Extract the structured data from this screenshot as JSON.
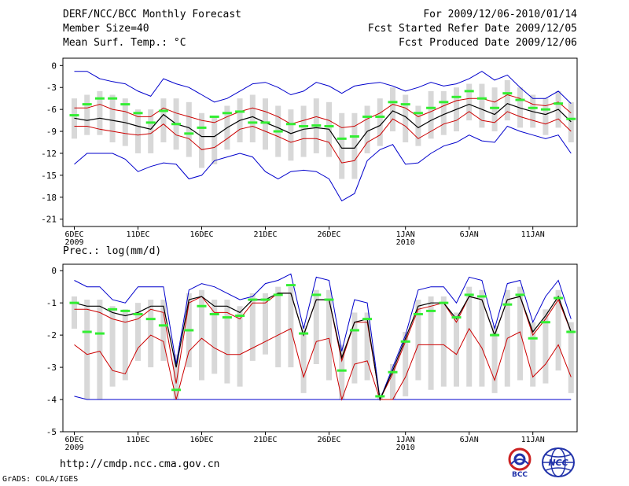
{
  "header": {
    "title": "DERF/NCC/BCC Monthly Forecast",
    "member": "Member Size=40",
    "variable": "Mean Surf. Temp.: °C",
    "period": "For 2009/12/06-2010/01/14",
    "started": "Fcst Started Refer Date 2009/12/05",
    "produced": "Fcst Produced Date 2009/12/06"
  },
  "footer": {
    "url": "http://cmdp.ncc.cma.gov.cn",
    "credit": "GrADS: COLA/IGES",
    "logo_bcc": "BCC",
    "logo_ncc": "NCC"
  },
  "colors": {
    "blue": "#0000cc",
    "red": "#cc0000",
    "black": "#000000",
    "green": "#33ee33",
    "box": "#d8d8d8"
  },
  "chart_data": [
    {
      "type": "ensemble-box",
      "name": "Mean Surf. Temp.",
      "ylabel": "°C",
      "ylim": [
        -22,
        1
      ],
      "yticks": [
        0,
        -3,
        -6,
        -9,
        -12,
        -15,
        -18,
        -21
      ],
      "xlim": [
        0,
        40
      ],
      "xticks": [
        {
          "i": 0,
          "label": "6DEC",
          "sub": "2009"
        },
        {
          "i": 5,
          "label": "11DEC",
          "sub": ""
        },
        {
          "i": 10,
          "label": "16DEC",
          "sub": ""
        },
        {
          "i": 15,
          "label": "21DEC",
          "sub": ""
        },
        {
          "i": 20,
          "label": "26DEC",
          "sub": ""
        },
        {
          "i": 26,
          "label": "1JAN",
          "sub": "2010"
        },
        {
          "i": 31,
          "label": "6JAN",
          "sub": ""
        },
        {
          "i": 36,
          "label": "11JAN",
          "sub": ""
        }
      ],
      "blue_max": [
        -0.8,
        -0.8,
        -1.8,
        -2.2,
        -2.5,
        -3.5,
        -4.2,
        -1.8,
        -2.5,
        -3.0,
        -4.0,
        -5.0,
        -4.5,
        -3.5,
        -2.5,
        -2.3,
        -3.0,
        -4.0,
        -3.5,
        -2.3,
        -2.8,
        -3.8,
        -2.8,
        -2.5,
        -2.3,
        -2.8,
        -3.5,
        -3.0,
        -2.3,
        -2.8,
        -2.5,
        -1.8,
        -0.8,
        -2.0,
        -1.3,
        -3.0,
        -4.5,
        -4.5,
        -3.5,
        -5.2
      ],
      "red_upper": [
        -5.8,
        -5.8,
        -5.3,
        -6.0,
        -6.3,
        -7.0,
        -7.0,
        -5.8,
        -6.5,
        -7.0,
        -7.5,
        -7.8,
        -7.0,
        -6.3,
        -5.8,
        -6.3,
        -7.0,
        -8.0,
        -7.5,
        -7.0,
        -7.5,
        -8.5,
        -8.3,
        -7.3,
        -6.5,
        -5.3,
        -5.8,
        -7.0,
        -6.3,
        -5.5,
        -4.8,
        -4.5,
        -4.5,
        -5.0,
        -4.0,
        -4.5,
        -5.3,
        -5.5,
        -5.0,
        -6.5
      ],
      "black_mean": [
        -7.2,
        -7.5,
        -7.2,
        -7.5,
        -7.8,
        -8.3,
        -8.7,
        -6.7,
        -8.0,
        -8.5,
        -9.7,
        -9.7,
        -8.5,
        -7.5,
        -7.0,
        -7.8,
        -8.5,
        -9.3,
        -8.7,
        -8.5,
        -8.7,
        -11.3,
        -11.3,
        -9.0,
        -8.2,
        -6.2,
        -7.0,
        -8.5,
        -7.5,
        -6.7,
        -6.0,
        -5.3,
        -6.0,
        -6.7,
        -5.2,
        -5.8,
        -6.3,
        -6.7,
        -6.0,
        -7.7
      ],
      "red_lower": [
        -8.3,
        -8.3,
        -8.7,
        -9.0,
        -9.3,
        -9.5,
        -9.3,
        -8.0,
        -9.5,
        -10.0,
        -11.5,
        -11.2,
        -10.0,
        -8.7,
        -8.3,
        -9.0,
        -9.7,
        -10.5,
        -10.0,
        -10.0,
        -10.5,
        -13.3,
        -13.0,
        -10.5,
        -9.5,
        -7.3,
        -8.3,
        -10.0,
        -9.0,
        -8.0,
        -7.5,
        -6.3,
        -7.5,
        -7.8,
        -6.3,
        -7.0,
        -7.5,
        -8.0,
        -7.3,
        -9.0
      ],
      "blue_min": [
        -13.5,
        -12.0,
        -12.0,
        -12.0,
        -12.8,
        -14.5,
        -13.8,
        -13.3,
        -13.5,
        -15.5,
        -15.0,
        -13.0,
        -12.5,
        -12.0,
        -12.5,
        -14.5,
        -15.5,
        -14.5,
        -14.3,
        -14.5,
        -15.5,
        -18.5,
        -17.5,
        -13.0,
        -11.5,
        -10.8,
        -13.5,
        -13.3,
        -12.0,
        -11.0,
        -10.5,
        -9.5,
        -10.3,
        -10.5,
        -8.3,
        -9.0,
        -9.5,
        -10.0,
        -9.5,
        -12.0
      ],
      "box_top": [
        -4.5,
        -4.0,
        -3.5,
        -4.0,
        -4.5,
        -6.0,
        -6.0,
        -4.5,
        -4.5,
        -5.0,
        -6.5,
        -7.0,
        -5.5,
        -4.5,
        -4.0,
        -4.5,
        -5.5,
        -6.0,
        -5.5,
        -4.5,
        -5.0,
        -6.5,
        -6.5,
        -5.5,
        -4.5,
        -3.0,
        -4.0,
        -5.5,
        -3.5,
        -3.5,
        -3.0,
        -2.5,
        -2.5,
        -3.0,
        -2.0,
        -3.0,
        -4.0,
        -4.5,
        -3.5,
        -5.0
      ],
      "box_bottom": [
        -10.0,
        -9.5,
        -9.5,
        -10.5,
        -11.0,
        -12.0,
        -12.0,
        -10.5,
        -11.5,
        -12.5,
        -14.0,
        -13.5,
        -11.5,
        -10.5,
        -10.5,
        -11.5,
        -12.5,
        -13.0,
        -12.5,
        -12.0,
        -12.5,
        -15.5,
        -15.5,
        -12.0,
        -11.0,
        -9.0,
        -10.5,
        -11.0,
        -10.0,
        -9.5,
        -9.0,
        -7.5,
        -8.5,
        -9.0,
        -7.5,
        -8.5,
        -8.5,
        -9.5,
        -8.5,
        -10.5
      ],
      "green": [
        -6.8,
        -5.3,
        -4.5,
        -4.5,
        -5.3,
        -6.5,
        -7.8,
        -6.2,
        -8.0,
        -9.3,
        -8.5,
        -7.0,
        -6.5,
        -6.3,
        -7.8,
        -7.8,
        -9.0,
        -8.0,
        -8.3,
        -8.2,
        -8.3,
        -10.0,
        -9.7,
        -7.0,
        -7.0,
        -5.0,
        -5.3,
        -6.5,
        -5.8,
        -5.0,
        -4.3,
        -3.5,
        -4.5,
        -5.8,
        -3.8,
        -4.7,
        -5.8,
        -6.0,
        -5.2,
        -7.3
      ]
    },
    {
      "type": "ensemble-box",
      "name": "Prec.: log(mm/d)",
      "ylabel": "log(mm/d)",
      "ylim": [
        -5,
        0.2
      ],
      "yticks": [
        0,
        -1,
        -2,
        -3,
        -4,
        -5
      ],
      "xlim": [
        0,
        40
      ],
      "xticks": [
        {
          "i": 0,
          "label": "6DEC",
          "sub": "2009"
        },
        {
          "i": 5,
          "label": "11DEC",
          "sub": ""
        },
        {
          "i": 10,
          "label": "16DEC",
          "sub": ""
        },
        {
          "i": 15,
          "label": "21DEC",
          "sub": ""
        },
        {
          "i": 20,
          "label": "26DEC",
          "sub": ""
        },
        {
          "i": 26,
          "label": "1JAN",
          "sub": "2010"
        },
        {
          "i": 31,
          "label": "6JAN",
          "sub": ""
        },
        {
          "i": 36,
          "label": "11JAN",
          "sub": ""
        }
      ],
      "blue_max": [
        -0.3,
        -0.5,
        -0.5,
        -0.9,
        -1.0,
        -0.5,
        -0.5,
        -0.5,
        -2.9,
        -0.6,
        -0.4,
        -0.5,
        -0.7,
        -0.9,
        -0.8,
        -0.4,
        -0.3,
        -0.1,
        -1.8,
        -0.2,
        -0.3,
        -2.5,
        -0.9,
        -1.0,
        -4.0,
        -3.0,
        -2.0,
        -0.6,
        -0.5,
        -0.5,
        -1.0,
        -0.2,
        -0.3,
        -1.8,
        -0.4,
        -0.3,
        -1.6,
        -0.8,
        -0.3,
        -1.5
      ],
      "red_upper": [
        -1.2,
        -1.2,
        -1.3,
        -1.5,
        -1.6,
        -1.5,
        -1.2,
        -1.3,
        -3.5,
        -1.0,
        -0.8,
        -1.3,
        -1.3,
        -1.5,
        -1.0,
        -1.0,
        -0.7,
        -0.7,
        -2.0,
        -0.9,
        -0.9,
        -2.8,
        -1.6,
        -1.6,
        -4.0,
        -3.2,
        -2.2,
        -1.2,
        -1.1,
        -1.0,
        -1.6,
        -0.8,
        -0.9,
        -2.0,
        -0.9,
        -0.8,
        -2.0,
        -1.5,
        -0.9,
        -1.9
      ],
      "black_mean": [
        -1.0,
        -1.1,
        -1.1,
        -1.3,
        -1.4,
        -1.3,
        -1.1,
        -1.1,
        -3.0,
        -0.9,
        -0.8,
        -1.1,
        -1.1,
        -1.3,
        -0.9,
        -0.9,
        -0.7,
        -0.7,
        -2.0,
        -0.9,
        -0.9,
        -2.7,
        -1.6,
        -1.5,
        -4.0,
        -3.1,
        -2.1,
        -1.1,
        -1.0,
        -1.0,
        -1.5,
        -0.8,
        -0.9,
        -2.0,
        -0.9,
        -0.8,
        -1.9,
        -1.4,
        -0.8,
        -1.9
      ],
      "red_lower": [
        -2.3,
        -2.6,
        -2.5,
        -3.1,
        -3.2,
        -2.4,
        -2.0,
        -2.2,
        -4.0,
        -2.5,
        -2.1,
        -2.4,
        -2.6,
        -2.6,
        -2.4,
        -2.2,
        -2.0,
        -1.8,
        -3.3,
        -2.2,
        -2.1,
        -4.0,
        -2.9,
        -2.8,
        -4.0,
        -4.0,
        -3.3,
        -2.3,
        -2.3,
        -2.3,
        -2.6,
        -1.8,
        -2.4,
        -3.4,
        -2.1,
        -1.9,
        -3.3,
        -2.9,
        -2.3,
        -3.3
      ],
      "blue_min": [
        -3.9,
        -4.0,
        -4.0,
        -4.0,
        -4.0,
        -4.0,
        -4.0,
        -4.0,
        -4.0,
        -4.0,
        -4.0,
        -4.0,
        -4.0,
        -4.0,
        -4.0,
        -4.0,
        -4.0,
        -4.0,
        -4.0,
        -4.0,
        -4.0,
        -4.0,
        -4.0,
        -4.0,
        -4.0,
        -4.0,
        -4.0,
        -4.0,
        -4.0,
        -4.0,
        -4.0,
        -4.0,
        -4.0,
        -4.0,
        -4.0,
        -4.0,
        -4.0,
        -4.0,
        -4.0,
        -4.0
      ],
      "box_top": [
        -0.8,
        -0.9,
        -0.9,
        -1.1,
        -1.2,
        -1.0,
        -0.9,
        -0.9,
        -2.6,
        -0.7,
        -0.6,
        -0.9,
        -0.9,
        -1.1,
        -0.7,
        -0.7,
        -0.5,
        -0.5,
        -1.7,
        -0.6,
        -0.6,
        -2.3,
        -1.3,
        -1.3,
        -3.8,
        -2.9,
        -1.9,
        -0.9,
        -0.8,
        -0.8,
        -1.3,
        -0.5,
        -0.6,
        -1.7,
        -0.6,
        -0.5,
        -1.6,
        -1.2,
        -0.6,
        -1.6
      ],
      "box_bottom": [
        -1.8,
        -4.0,
        -4.0,
        -3.6,
        -3.4,
        -2.8,
        -3.0,
        -2.8,
        -4.0,
        -3.0,
        -3.4,
        -3.2,
        -3.5,
        -3.6,
        -2.8,
        -2.6,
        -3.0,
        -3.0,
        -3.8,
        -2.9,
        -3.4,
        -4.0,
        -3.5,
        -3.4,
        -4.0,
        -4.0,
        -3.9,
        -3.4,
        -3.7,
        -3.6,
        -3.6,
        -3.6,
        -3.6,
        -3.8,
        -3.6,
        -3.4,
        -3.6,
        -3.5,
        -3.1,
        -3.8
      ],
      "green": [
        -1.0,
        -1.9,
        -1.95,
        -1.2,
        -1.25,
        -1.35,
        -1.5,
        -1.7,
        -3.7,
        -1.85,
        -1.1,
        -1.35,
        -1.45,
        -1.4,
        -0.9,
        -0.9,
        -0.75,
        -0.45,
        -1.95,
        -0.75,
        -0.9,
        -3.1,
        -1.85,
        -1.5,
        -3.9,
        -3.15,
        -2.2,
        -1.35,
        -1.25,
        -1.0,
        -1.45,
        -0.75,
        -0.8,
        -2.0,
        -1.05,
        -0.75,
        -2.1,
        -1.6,
        -0.85,
        -1.9
      ]
    }
  ]
}
